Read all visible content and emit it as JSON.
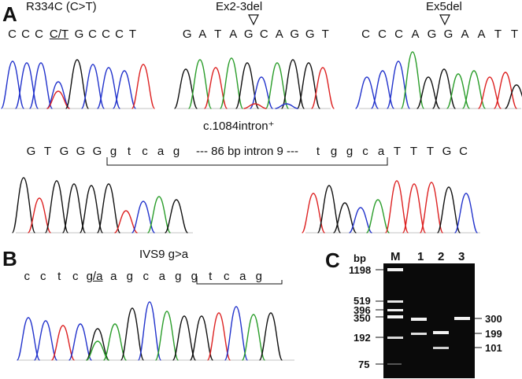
{
  "panel_a": {
    "letter": "A",
    "titles": {
      "r334c": "R334C (C>T)",
      "ex23": "Ex2-3del",
      "ex5": "Ex5del",
      "intron": "c.1084intron⁺"
    },
    "seq_r334c": [
      "C",
      "C",
      "C",
      "C/T",
      "G",
      "C",
      "C",
      "C",
      "T"
    ],
    "seq_ex23": [
      "G",
      "A",
      "T",
      "A",
      "G",
      "C",
      "A",
      "G",
      "G",
      "T"
    ],
    "seq_ex5": [
      "C",
      "C",
      "C",
      "A",
      "G",
      "G",
      "A",
      "A",
      "T",
      "T"
    ],
    "seq_intron": {
      "upper_left": [
        "G",
        "T",
        "G",
        "G",
        "G"
      ],
      "lower_left": [
        "g",
        "t",
        "c",
        "a",
        "g"
      ],
      "middle": "--- 86 bp intron 9 ---",
      "lower_right": [
        "t",
        "g",
        "g",
        "c",
        "a"
      ],
      "upper_right": [
        "T",
        "T",
        "T",
        "G",
        "C"
      ]
    }
  },
  "panel_b": {
    "letter": "B",
    "title": "IVS9 g>a",
    "seq": [
      "c",
      "c",
      "t",
      "c",
      "g/a",
      "a",
      "g",
      "c",
      "a",
      "g",
      "g",
      "t",
      "c",
      "a",
      "g"
    ]
  },
  "panel_c": {
    "letter": "C",
    "bp_header": "bp",
    "lanes": [
      "M",
      "1",
      "2",
      "3"
    ],
    "ladder_sizes": [
      "1198",
      "519",
      "396",
      "350",
      "192",
      "75"
    ],
    "band_sizes_right": [
      "300",
      "199",
      "101"
    ]
  },
  "colors": {
    "A": "#2a9d2a",
    "C": "#2233cc",
    "G": "#111111",
    "T": "#dd2222",
    "gel": "#0b0b0b",
    "band": "#f2f2f2"
  }
}
